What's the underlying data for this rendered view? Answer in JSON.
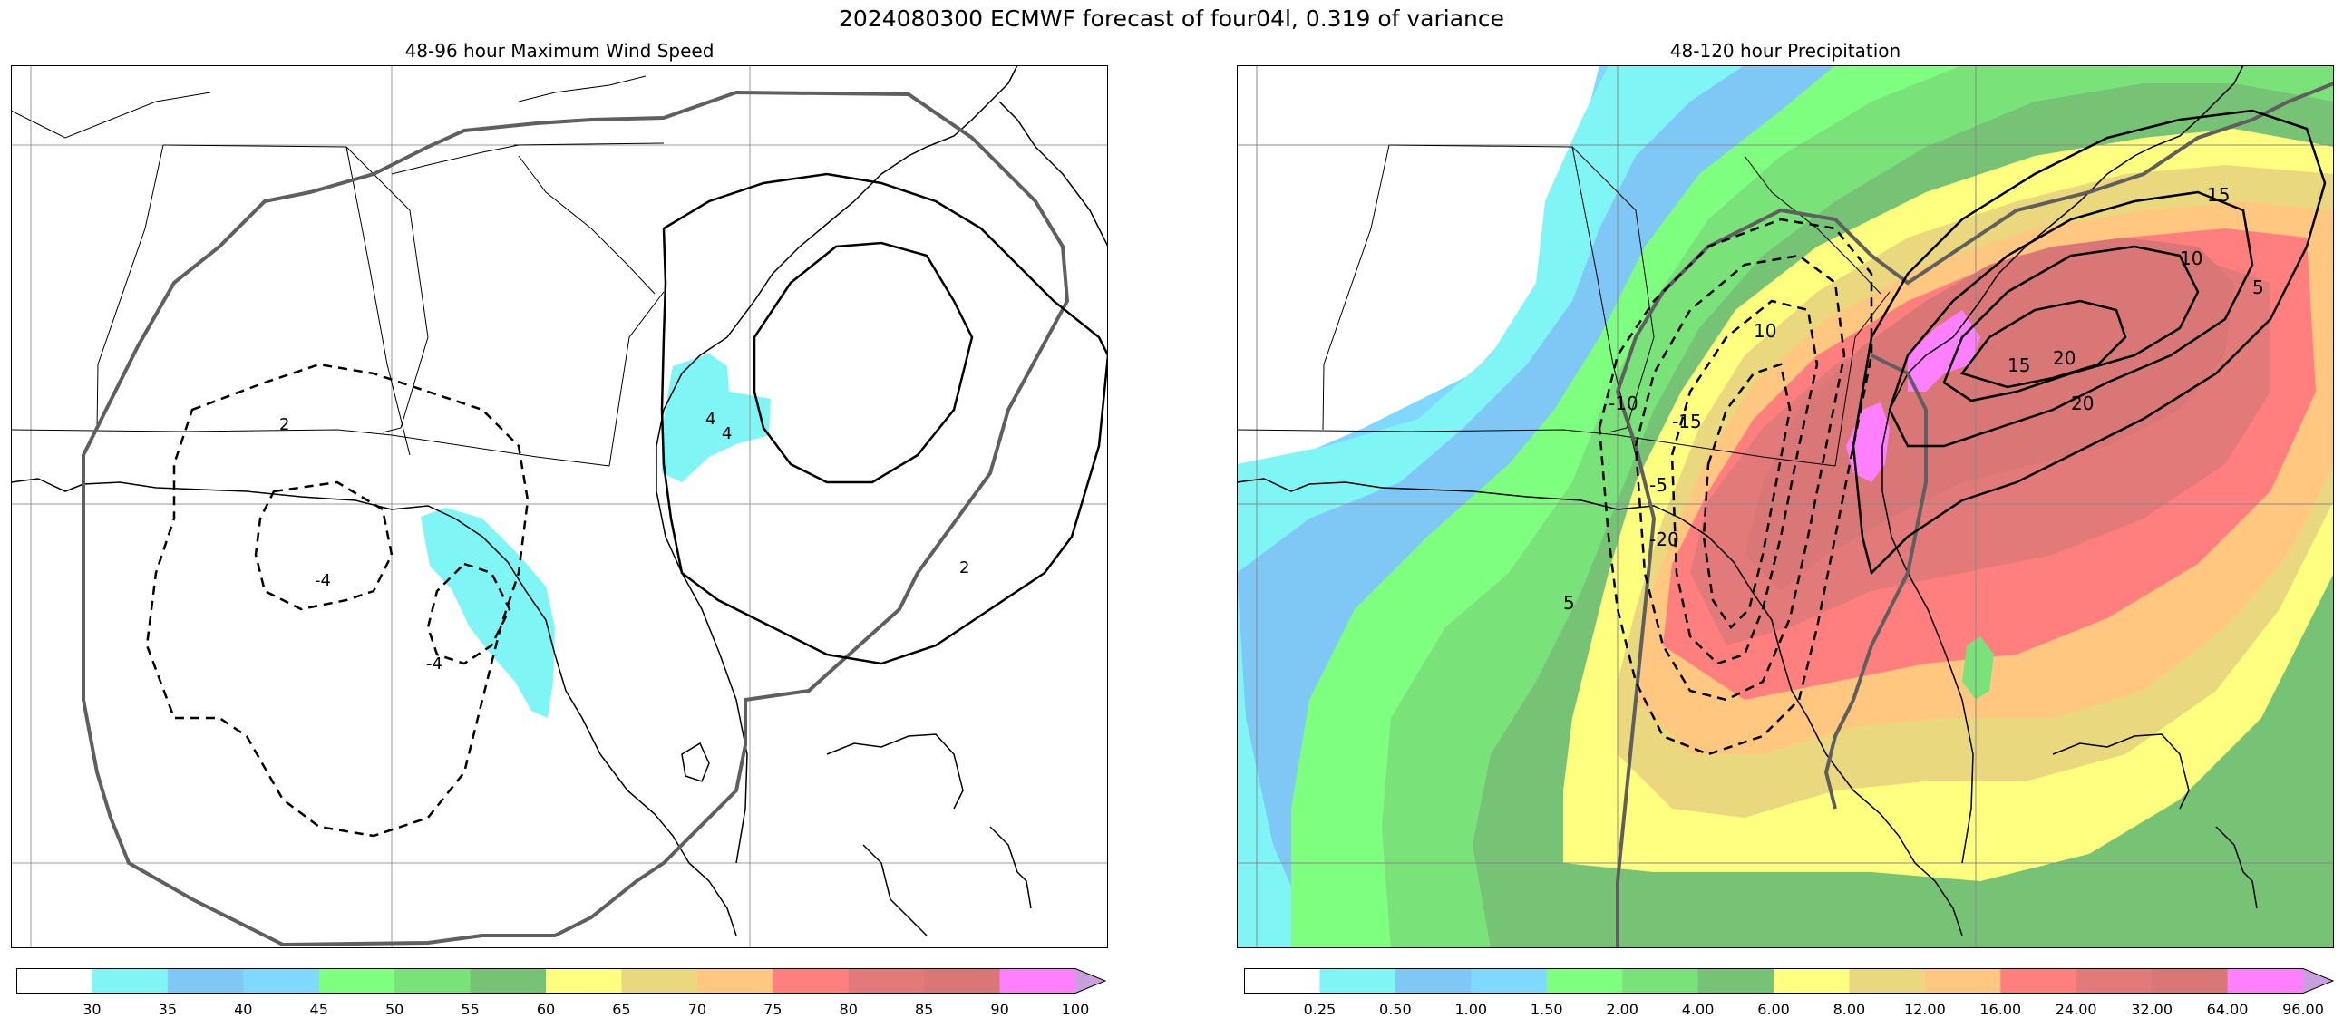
{
  "figure": {
    "suptitle": "2024080300 ECMWF forecast of four04l, 0.319 of variance"
  },
  "chart_data": [
    {
      "type": "heatmap",
      "title": "48-96 hour Maximum Wind Speed",
      "description_kind": "filled contour map with anomaly contour lines",
      "grid": true,
      "colorbar": {
        "orientation": "horizontal",
        "extend": "max",
        "levels": [
          30,
          35,
          40,
          45,
          50,
          55,
          60,
          65,
          70,
          75,
          80,
          85,
          90,
          100
        ],
        "tick_labels": [
          "30",
          "35",
          "40",
          "45",
          "50",
          "55",
          "60",
          "65",
          "70",
          "75",
          "80",
          "85",
          "90",
          "100"
        ],
        "colors": [
          "#ffffff",
          "#7ff5f5",
          "#7fc8f5",
          "#7fd8ff",
          "#7fff7f",
          "#79e279",
          "#76c376",
          "#ffff7f",
          "#ead87f",
          "#ffc77f",
          "#ff7f7f",
          "#e37a7a",
          "#d97676",
          "#ff80ff",
          "#c8a0dc"
        ]
      },
      "contour_labels": [
        "2",
        "2",
        "4",
        "4",
        "-4",
        "-4"
      ],
      "filled_region_level": 30
    },
    {
      "type": "heatmap",
      "title": "48-120 hour Precipitation",
      "description_kind": "filled contour map with anomaly contour lines",
      "grid": true,
      "colorbar": {
        "orientation": "horizontal",
        "extend": "max",
        "levels": [
          0.25,
          0.5,
          1.0,
          1.5,
          2.0,
          4.0,
          6.0,
          8.0,
          12.0,
          16.0,
          24.0,
          32.0,
          64.0,
          96.0
        ],
        "tick_labels": [
          "0.25",
          "0.50",
          "1.00",
          "1.50",
          "2.00",
          "4.00",
          "6.00",
          "8.00",
          "12.00",
          "16.00",
          "24.00",
          "32.00",
          "64.00",
          "96.00"
        ],
        "colors": [
          "#ffffff",
          "#7ff5f5",
          "#7fc8f5",
          "#7fd8ff",
          "#7fff7f",
          "#79e279",
          "#76c376",
          "#ffff7f",
          "#ead87f",
          "#ffc77f",
          "#ff7f7f",
          "#e37a7a",
          "#d97676",
          "#ff80ff",
          "#c8a0dc"
        ]
      },
      "contour_labels": [
        "5",
        "10",
        "15",
        "20",
        "20",
        "15",
        "10",
        "5",
        "-5",
        "-10",
        "-15",
        "-20"
      ]
    }
  ]
}
